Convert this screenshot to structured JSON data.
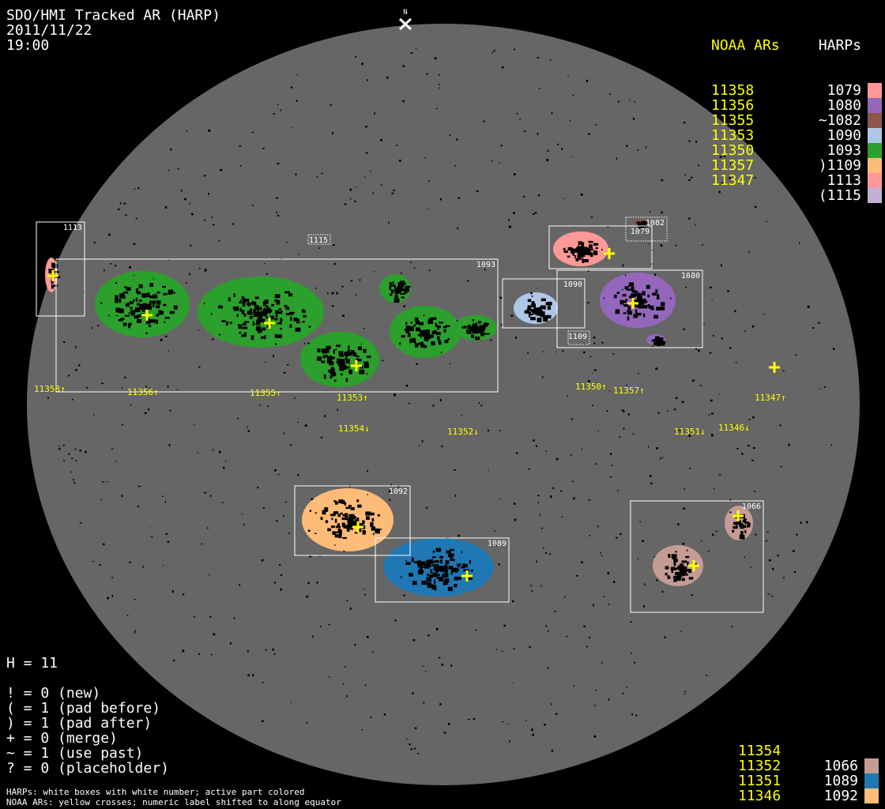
{
  "title": "SDO/HMI Tracked AR (HARP)",
  "date": "2011/11/22",
  "time": "19:00",
  "north_label": "N",
  "legend_top": {
    "noaa_header": "NOAA ARs",
    "harp_header": "HARPs",
    "noaa": [
      "11358",
      "11356",
      "11355",
      "11353",
      "11350",
      "11357",
      "11347"
    ],
    "harps": [
      {
        "label": "1079",
        "color": "#ff9896"
      },
      {
        "label": "1080",
        "color": "#9467bd"
      },
      {
        "label": "~1082",
        "color": "#8c564b"
      },
      {
        "label": "1090",
        "color": "#aec7e8"
      },
      {
        "label": "1093",
        "color": "#2ca02c"
      },
      {
        "label": ")1109",
        "color": "#ffbb78"
      },
      {
        "label": "1113",
        "color": "#ff9896"
      },
      {
        "label": "(1115",
        "color": "#c5b0d5"
      }
    ]
  },
  "legend_bottom": {
    "noaa": [
      "11354",
      "11352",
      "11351",
      "11346"
    ],
    "harps": [
      {
        "label": "1066",
        "color": "#c49c94"
      },
      {
        "label": "1089",
        "color": "#1f77b4"
      },
      {
        "label": "1092",
        "color": "#ffbb78"
      }
    ]
  },
  "stats": {
    "h": "H = 11",
    "lines": [
      "! = 0 (new)",
      "( = 1 (pad before)",
      ") = 1 (pad after)",
      "+ = 0 (merge)",
      "~ = 1 (use past)",
      "? = 0 (placeholder)"
    ]
  },
  "footnotes": [
    "HARPs: white boxes with white number; active part colored",
    "NOAA ARs: yellow crosses; numeric label shifted to along equator"
  ],
  "harp_boxes": [
    "1113",
    "1093",
    "1115",
    "1079",
    "1082",
    "1090",
    "1080",
    "1109",
    "1092",
    "1089",
    "1066"
  ],
  "noaa_labels": [
    "11358↑",
    "11356↑",
    "11355↑",
    "11353↑",
    "11354↓",
    "11352↓",
    "11350↑",
    "11357↑",
    "11347↑",
    "11351↓",
    "11346↓"
  ],
  "colors": {
    "disk": "#666666",
    "noaa": "#ffff00",
    "box": "#ffffff"
  }
}
